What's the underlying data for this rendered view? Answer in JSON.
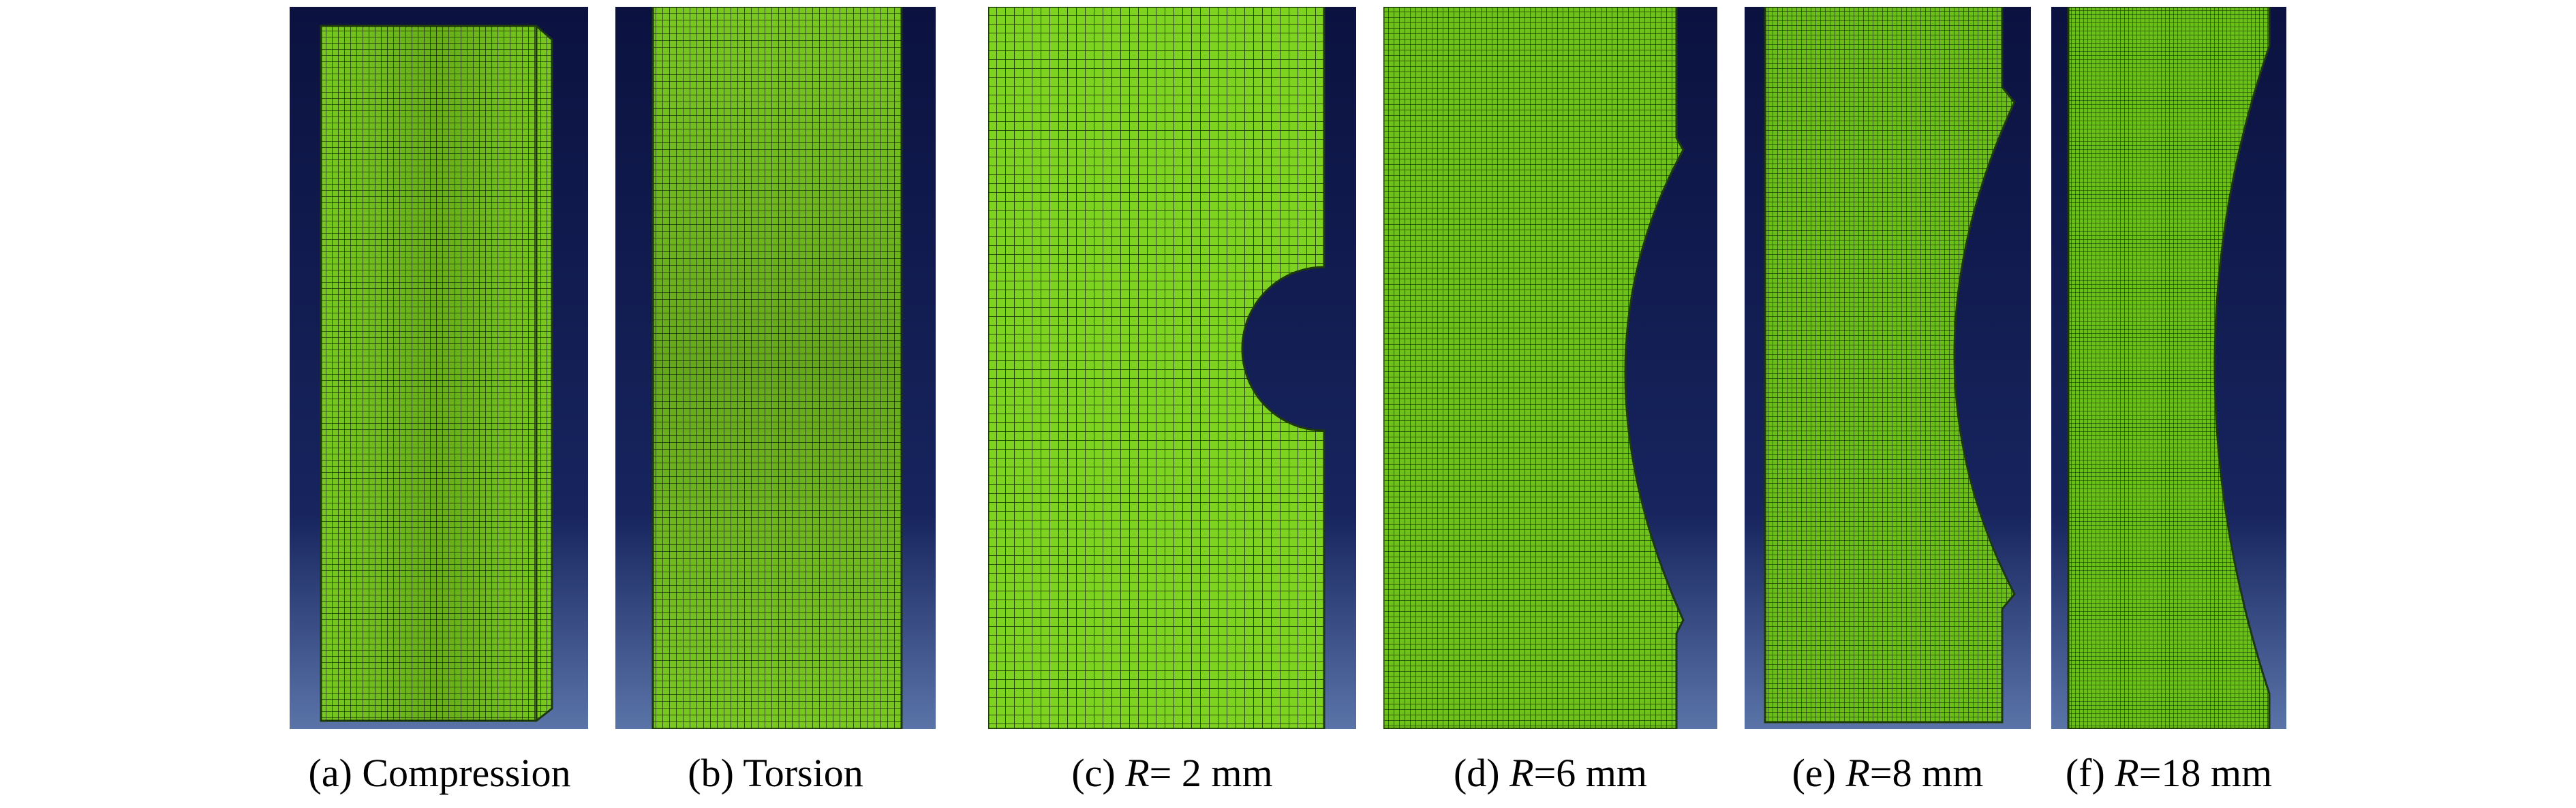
{
  "panels": [
    {
      "letter": "(a)",
      "label": "Compression"
    },
    {
      "letter": "(b)",
      "label": "Torsion"
    },
    {
      "letter": "(c)",
      "var": "R",
      "value": "= 2 mm"
    },
    {
      "letter": "(d)",
      "var": "R",
      "value": "=6 mm"
    },
    {
      "letter": "(e)",
      "var": "R",
      "value": "=8 mm"
    },
    {
      "letter": "(f)",
      "var": "R",
      "value": "=18 mm"
    }
  ],
  "colors": {
    "background_top": "#0b1240",
    "background_bottom": "#5a74a8",
    "mesh_fill": "#7ed321",
    "mesh_line": "#1d3a08"
  }
}
